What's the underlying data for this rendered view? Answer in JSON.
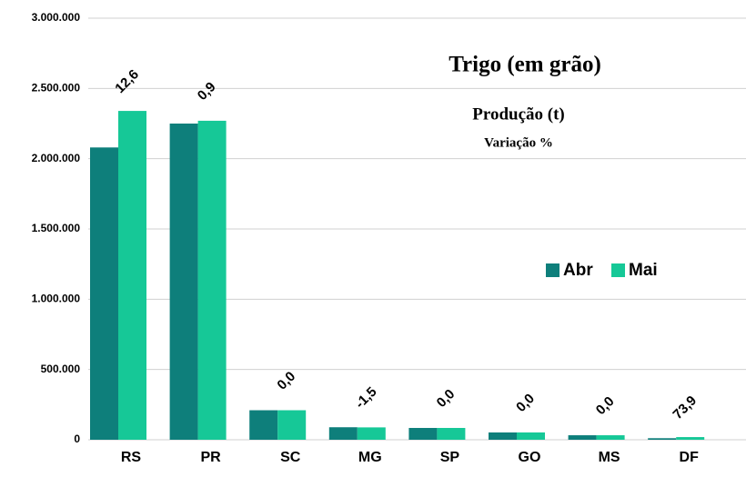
{
  "chart_data": {
    "type": "bar",
    "title": "Trigo (em grão)",
    "subtitle": "Produção (t)",
    "annotation": "Variação %",
    "categories": [
      "RS",
      "PR",
      "SC",
      "MG",
      "SP",
      "GO",
      "MS",
      "DF"
    ],
    "series": [
      {
        "name": "Abr",
        "color": "#0e7f7b",
        "values": [
          2080000,
          2250000,
          210000,
          89000,
          84000,
          52000,
          32000,
          11000
        ]
      },
      {
        "name": "Mai",
        "color": "#16c897",
        "values": [
          2340000,
          2270000,
          210000,
          88000,
          84000,
          52000,
          32000,
          19000
        ]
      }
    ],
    "variation": {
      "values": [
        12.6,
        0.9,
        0.0,
        -1.5,
        0.0,
        0.0,
        0.0,
        73.9
      ],
      "value_labels": [
        "12,6",
        "0,9",
        "0,0",
        "-1,5",
        "0,0",
        "0,0",
        "0,0",
        "73,9"
      ]
    },
    "ylim": [
      0,
      3000000
    ],
    "yticks": [
      0,
      {
        "value": 500000,
        "label": "500.000"
      },
      {
        "value": 1000000,
        "label": "1.000.000"
      },
      {
        "value": 1500000,
        "label": "1.500.000"
      },
      {
        "value": 2000000,
        "label": "2.000.000"
      },
      {
        "value": 2500000,
        "label": "2.500.000"
      },
      {
        "value": 3000000,
        "label": "3.000.000"
      }
    ],
    "grid": true
  }
}
